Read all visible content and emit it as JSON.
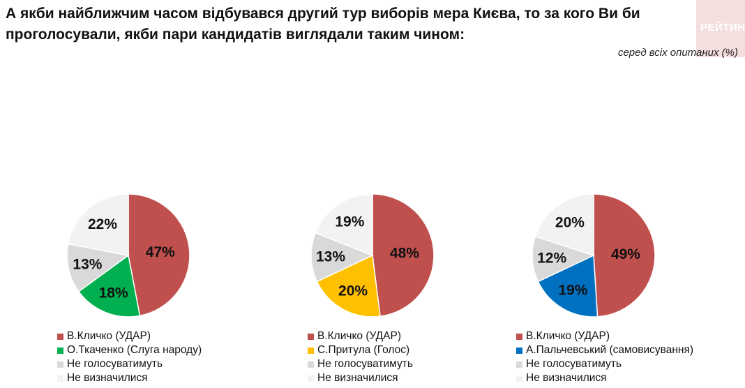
{
  "title": "А якби найближчим часом відбувався другий тур виборів мера Києва, то за кого Ви би проголосували, якби пари кандидатів виглядали таким чином:",
  "subtitle": "серед всіх опитаних (%)",
  "logo_text": "РЕЙТИНГ",
  "colors": {
    "klitschko": "#c0504d",
    "tkachenko": "#00b050",
    "prytula": "#ffc000",
    "palchevsky": "#0070c0",
    "not_vote": "#d9d9d9",
    "undecided": "#f2f2f2"
  },
  "chart_data": [
    {
      "type": "pie",
      "series": [
        {
          "name": "В.Кличко (УДАР)",
          "value": 47,
          "label": "47%",
          "color": "#c0504d"
        },
        {
          "name": "О.Ткаченко (Слуга народу)",
          "value": 18,
          "label": "18%",
          "color": "#00b050"
        },
        {
          "name": "Не голосуватимуть",
          "value": 13,
          "label": "13%",
          "color": "#d9d9d9"
        },
        {
          "name": "Не визначилися",
          "value": 22,
          "label": "22%",
          "color": "#f2f2f2"
        }
      ]
    },
    {
      "type": "pie",
      "series": [
        {
          "name": "В.Кличко (УДАР)",
          "value": 48,
          "label": "48%",
          "color": "#c0504d"
        },
        {
          "name": "С.Притула (Голос)",
          "value": 20,
          "label": "20%",
          "color": "#ffc000"
        },
        {
          "name": "Не голосуватимуть",
          "value": 13,
          "label": "13%",
          "color": "#d9d9d9"
        },
        {
          "name": "Не визначилися",
          "value": 19,
          "label": "19%",
          "color": "#f2f2f2"
        }
      ]
    },
    {
      "type": "pie",
      "series": [
        {
          "name": "В.Кличко (УДАР)",
          "value": 49,
          "label": "49%",
          "color": "#c0504d"
        },
        {
          "name": "А.Пальчевський (самовисування)",
          "value": 19,
          "label": "19%",
          "color": "#0070c0"
        },
        {
          "name": "Не голосуватимуть",
          "value": 12,
          "label": "12%",
          "color": "#d9d9d9"
        },
        {
          "name": "Не визначилися",
          "value": 20,
          "label": "20%",
          "color": "#f2f2f2"
        }
      ]
    }
  ]
}
